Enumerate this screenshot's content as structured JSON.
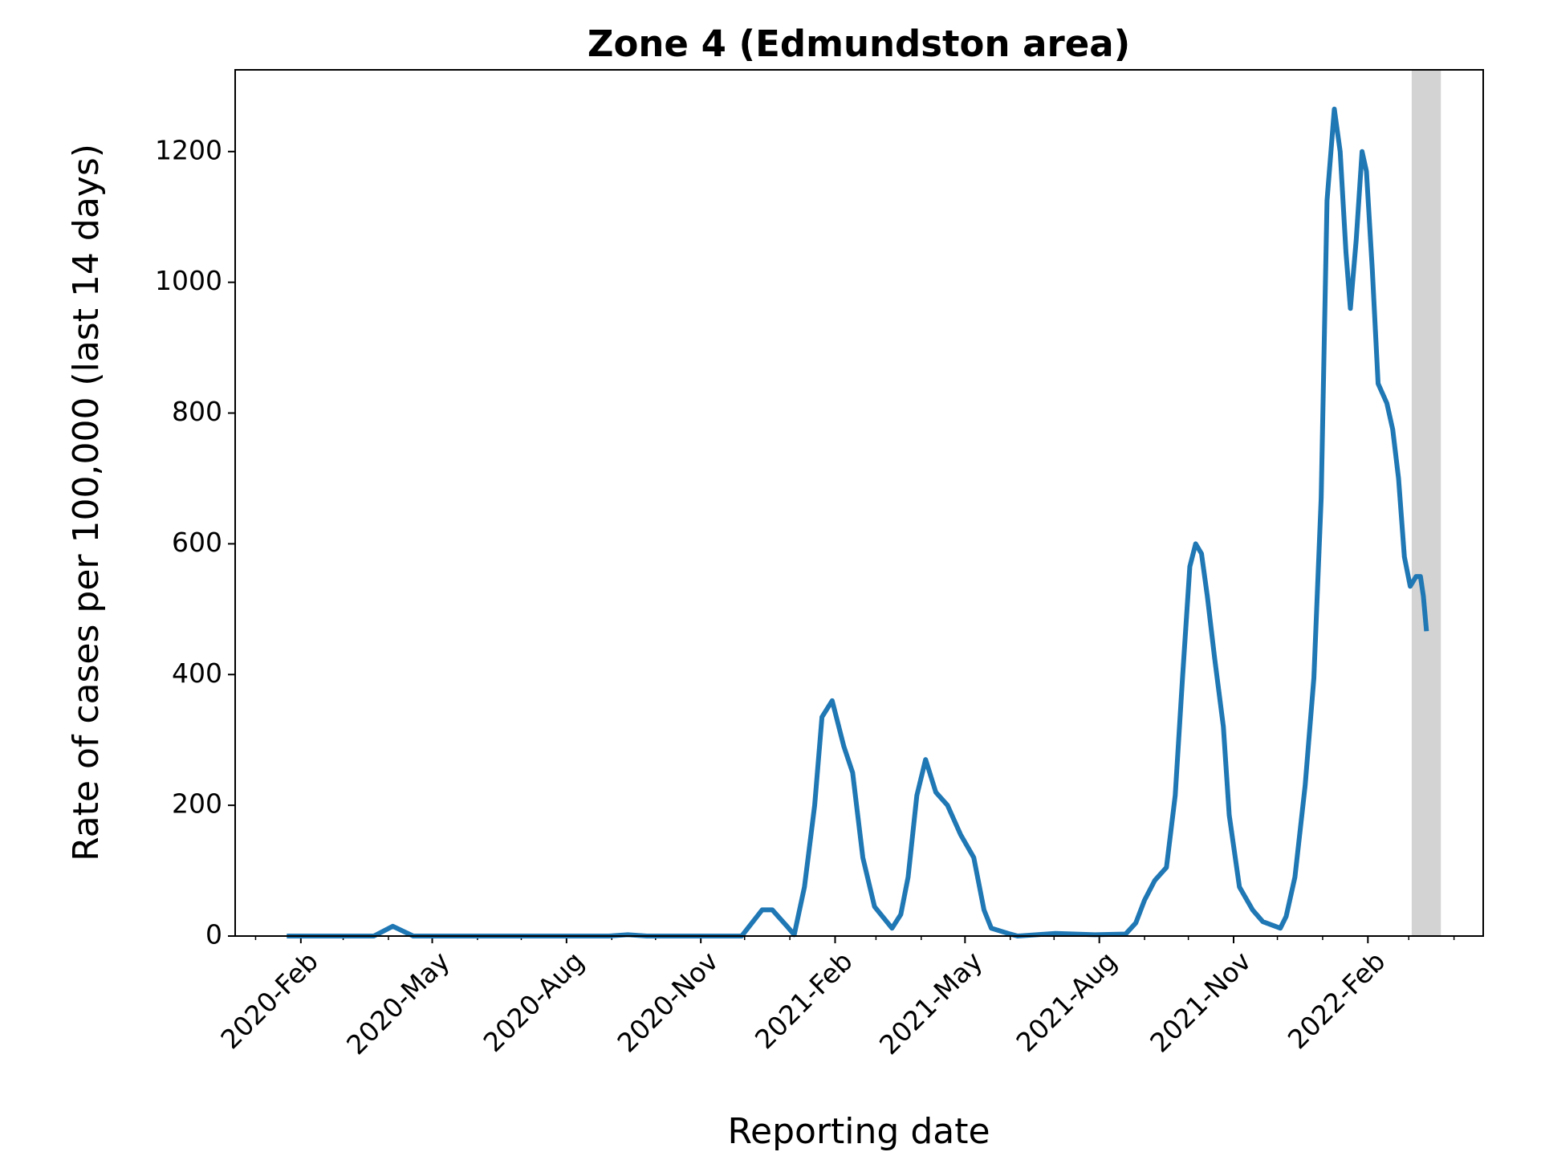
{
  "chart_data": {
    "type": "line",
    "title": "Zone 4 (Edmundston area)",
    "x_label": "Reporting date",
    "y_label": "Rate of cases per 100,000 (last 14 days)",
    "color": "#1f77b4",
    "shade_color": "#d3d3d3",
    "shade": [
      "2022-03-03",
      "2022-03-23"
    ],
    "x": [
      "2020-01-24",
      "2020-03-22",
      "2020-04-04",
      "2020-04-18",
      "2020-08-30",
      "2020-09-12",
      "2020-09-25",
      "2020-11-29",
      "2020-12-13",
      "2020-12-20",
      "2020-12-30",
      "2021-01-04",
      "2021-01-11",
      "2021-01-18",
      "2021-01-23",
      "2021-01-30",
      "2021-02-07",
      "2021-02-13",
      "2021-02-20",
      "2021-02-28",
      "2021-03-12",
      "2021-03-18",
      "2021-03-23",
      "2021-03-29",
      "2021-04-04",
      "2021-04-11",
      "2021-04-19",
      "2021-04-28",
      "2021-05-07",
      "2021-05-14",
      "2021-05-19",
      "2021-06-01",
      "2021-06-06",
      "2021-07-02",
      "2021-07-29",
      "2021-08-19",
      "2021-08-26",
      "2021-09-01",
      "2021-09-08",
      "2021-09-16",
      "2021-09-22",
      "2021-09-27",
      "2021-10-02",
      "2021-10-06",
      "2021-10-10",
      "2021-10-14",
      "2021-10-19",
      "2021-10-25",
      "2021-10-29",
      "2021-11-05",
      "2021-11-14",
      "2021-11-21",
      "2021-12-03",
      "2021-12-07",
      "2021-12-13",
      "2021-12-20",
      "2021-12-26",
      "2021-12-31",
      "2022-01-04",
      "2022-01-09",
      "2022-01-13",
      "2022-01-17",
      "2022-01-20",
      "2022-01-24",
      "2022-01-28",
      "2022-01-31",
      "2022-02-04",
      "2022-02-08",
      "2022-02-14",
      "2022-02-18",
      "2022-02-22",
      "2022-02-26",
      "2022-03-02",
      "2022-03-06",
      "2022-03-09",
      "2022-03-11",
      "2022-03-13"
    ],
    "values": [
      0,
      0,
      15,
      0,
      0,
      2,
      0,
      0,
      40,
      40,
      15,
      2,
      75,
      200,
      335,
      360,
      290,
      250,
      120,
      45,
      12,
      33,
      90,
      215,
      270,
      220,
      200,
      155,
      120,
      40,
      12,
      3,
      0,
      4,
      2,
      3,
      20,
      55,
      85,
      105,
      215,
      395,
      565,
      600,
      585,
      520,
      425,
      320,
      185,
      75,
      40,
      22,
      12,
      30,
      90,
      230,
      395,
      670,
      1125,
      1265,
      1200,
      1045,
      960,
      1065,
      1200,
      1170,
      1020,
      845,
      815,
      775,
      700,
      580,
      535,
      550,
      550,
      520,
      470
    ],
    "xlim": [
      "2019-12-18",
      "2022-04-21"
    ],
    "xticks": [
      {
        "value": "2020-02-01",
        "label": "2020-Feb"
      },
      {
        "value": "2020-05-01",
        "label": "2020-May"
      },
      {
        "value": "2020-08-01",
        "label": "2020-Aug"
      },
      {
        "value": "2020-11-01",
        "label": "2020-Nov"
      },
      {
        "value": "2021-02-01",
        "label": "2021-Feb"
      },
      {
        "value": "2021-05-01",
        "label": "2021-May"
      },
      {
        "value": "2021-08-01",
        "label": "2021-Aug"
      },
      {
        "value": "2021-11-01",
        "label": "2021-Nov"
      },
      {
        "value": "2022-02-01",
        "label": "2022-Feb"
      }
    ],
    "xminorticks": [
      "2020-01-01",
      "2020-03-01",
      "2020-04-01",
      "2020-06-01",
      "2020-07-01",
      "2020-09-01",
      "2020-10-01",
      "2020-12-01",
      "2021-01-01",
      "2021-03-01",
      "2021-04-01",
      "2021-06-01",
      "2021-07-01",
      "2021-09-01",
      "2021-10-01",
      "2021-12-01",
      "2022-01-01",
      "2022-03-01",
      "2022-04-01"
    ],
    "ylim": [
      0,
      1325
    ],
    "yticks": [
      0,
      200,
      400,
      600,
      800,
      1000,
      1200
    ],
    "grid": false
  }
}
